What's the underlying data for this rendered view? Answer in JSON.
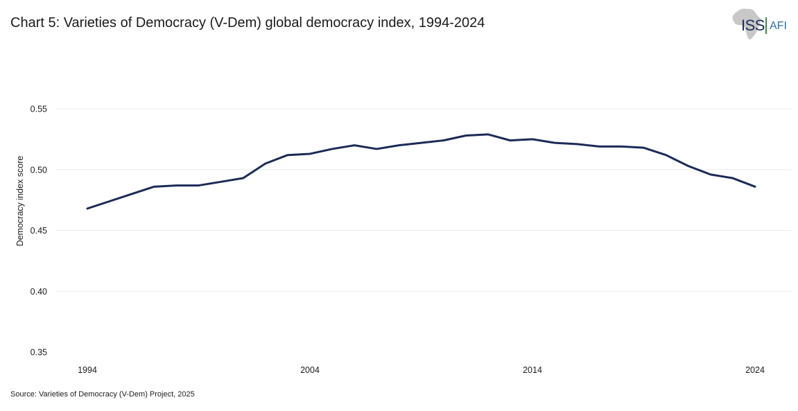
{
  "header": {
    "title": "Chart 5: Varieties of Democracy (V-Dem) global democracy index, 1994-2024"
  },
  "logo": {
    "text": "ISS",
    "suffix": "AFI",
    "colors": {
      "primary": "#1d2b5a",
      "accent": "#2a6ab0",
      "separator": "#3a8a3a",
      "map": "#c8c8c8"
    }
  },
  "footer": {
    "source": "Source: Varieties of Democracy (V-Dem) Project, 2025"
  },
  "chart_data": {
    "type": "line",
    "title": "Chart 5: Varieties of Democracy (V-Dem) global democracy index, 1994-2024",
    "xlabel": "",
    "ylabel": "Democracy index score",
    "xlim": [
      1994,
      2024
    ],
    "ylim": [
      0.35,
      0.55
    ],
    "x_ticks": [
      "1994",
      "2004",
      "2014",
      "2024"
    ],
    "y_ticks": [
      "0.35",
      "0.40",
      "0.45",
      "0.50",
      "0.55"
    ],
    "grid": true,
    "legend": "none",
    "line_color": "#1b2a57",
    "x": [
      1994,
      1995,
      1996,
      1997,
      1998,
      1999,
      2000,
      2001,
      2002,
      2003,
      2004,
      2005,
      2006,
      2007,
      2008,
      2009,
      2010,
      2011,
      2012,
      2013,
      2014,
      2015,
      2016,
      2017,
      2018,
      2019,
      2020,
      2021,
      2022,
      2023,
      2024
    ],
    "series": [
      {
        "values": [
          0.468,
          0.474,
          0.48,
          0.486,
          0.487,
          0.487,
          0.49,
          0.493,
          0.505,
          0.512,
          0.513,
          0.517,
          0.52,
          0.517,
          0.52,
          0.522,
          0.524,
          0.528,
          0.529,
          0.524,
          0.525,
          0.522,
          0.521,
          0.519,
          0.519,
          0.518,
          0.512,
          0.503,
          0.496,
          0.493,
          0.486
        ]
      }
    ]
  }
}
